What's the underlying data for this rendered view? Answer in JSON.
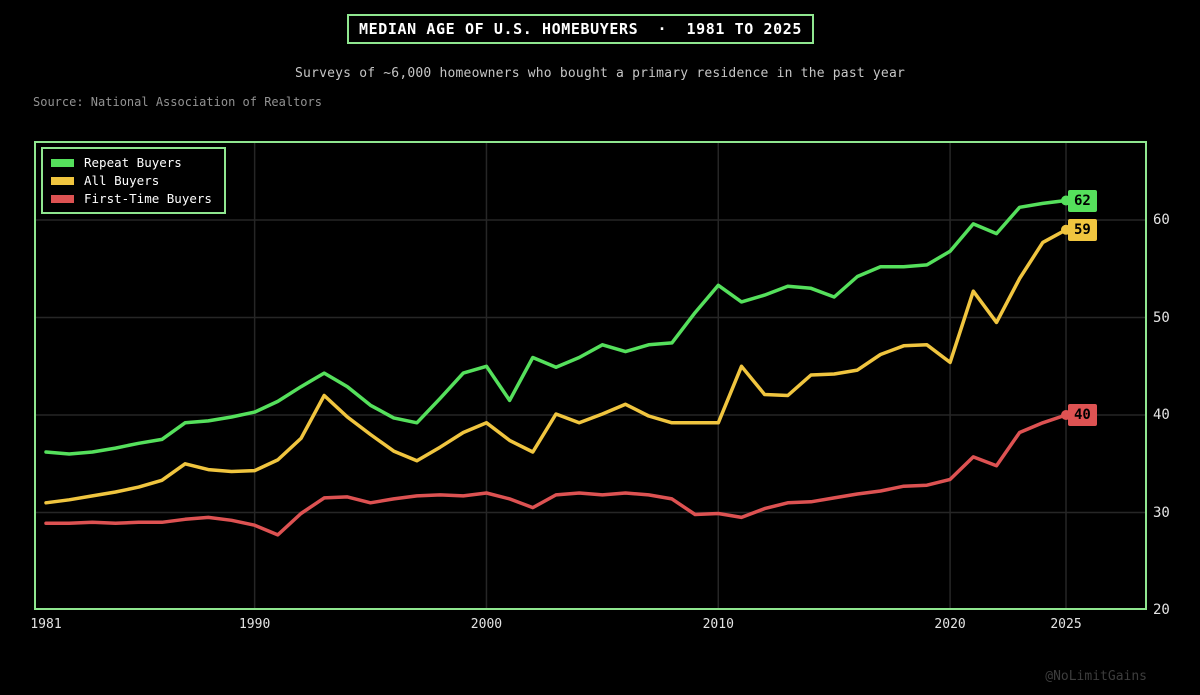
{
  "page": {
    "title": "MEDIAN AGE OF U.S. HOMEBUYERS  ·  1981 TO 2025",
    "subtitle": "Surveys of ~6,000 homeowners who bought a primary residence in the past year",
    "source": "Source: National Association of Realtors",
    "watermark": "@NoLimitGains"
  },
  "colors": {
    "background": "#000000",
    "border_green": "#8fe68f",
    "grid": "#262626",
    "tick_text": "#e3e3e3",
    "repeat_buyers": "#55e05c",
    "all_buyers": "#f0c53f",
    "first_time_buyers": "#dd5252"
  },
  "chart_data": {
    "type": "line",
    "title": "MEDIAN AGE OF U.S. HOMEBUYERS · 1981 TO 2025",
    "xlabel": "",
    "ylabel": "",
    "xlim": [
      1981,
      2025
    ],
    "ylim": [
      20,
      68
    ],
    "x_ticks": [
      1981,
      1990,
      2000,
      2010,
      2020,
      2025
    ],
    "y_ticks": [
      20,
      30,
      40,
      50,
      60
    ],
    "grid": true,
    "legend_position": "top-left",
    "years": [
      1981,
      1982,
      1983,
      1984,
      1985,
      1986,
      1987,
      1988,
      1989,
      1990,
      1991,
      1992,
      1993,
      1994,
      1995,
      1996,
      1997,
      1998,
      1999,
      2000,
      2001,
      2002,
      2003,
      2004,
      2005,
      2006,
      2007,
      2008,
      2009,
      2010,
      2011,
      2012,
      2013,
      2014,
      2015,
      2016,
      2017,
      2018,
      2019,
      2020,
      2021,
      2022,
      2023,
      2024,
      2025
    ],
    "series": [
      {
        "name": "Repeat Buyers",
        "color": "#55e05c",
        "end_label": "62",
        "values": [
          36.2,
          36.0,
          36.2,
          36.6,
          37.1,
          37.5,
          39.2,
          39.4,
          39.8,
          40.3,
          41.4,
          42.9,
          44.3,
          42.9,
          41.0,
          39.7,
          39.2,
          41.7,
          44.3,
          45.0,
          41.5,
          45.9,
          44.9,
          45.9,
          47.2,
          46.5,
          47.2,
          47.4,
          50.5,
          53.3,
          51.6,
          52.3,
          53.2,
          53.0,
          52.1,
          54.2,
          55.2,
          55.2,
          55.4,
          56.8,
          59.6,
          58.6,
          61.3,
          61.7,
          62
        ]
      },
      {
        "name": "All Buyers",
        "color": "#f0c53f",
        "end_label": "59",
        "values": [
          31.0,
          31.3,
          31.7,
          32.1,
          32.6,
          33.3,
          35.0,
          34.4,
          34.2,
          34.3,
          35.4,
          37.6,
          42.0,
          39.8,
          38.0,
          36.3,
          35.3,
          36.7,
          38.2,
          39.2,
          37.4,
          36.2,
          40.1,
          39.2,
          40.1,
          41.1,
          39.9,
          39.2,
          39.2,
          39.2,
          45.0,
          42.1,
          42.0,
          44.1,
          44.2,
          44.6,
          46.2,
          47.1,
          47.2,
          45.4,
          52.7,
          49.5,
          54.0,
          57.7,
          59
        ]
      },
      {
        "name": "First-Time Buyers",
        "color": "#dd5252",
        "end_label": "40",
        "values": [
          28.9,
          28.9,
          29.0,
          28.9,
          29.0,
          29.0,
          29.3,
          29.5,
          29.2,
          28.7,
          27.7,
          29.9,
          31.5,
          31.6,
          31.0,
          31.4,
          31.7,
          31.8,
          31.7,
          32.0,
          31.4,
          30.5,
          31.8,
          32.0,
          31.8,
          32.0,
          31.8,
          31.4,
          29.8,
          29.9,
          29.5,
          30.4,
          31.0,
          31.1,
          31.5,
          31.9,
          32.2,
          32.7,
          32.8,
          33.4,
          35.7,
          34.8,
          38.2,
          39.2,
          40
        ]
      }
    ]
  }
}
